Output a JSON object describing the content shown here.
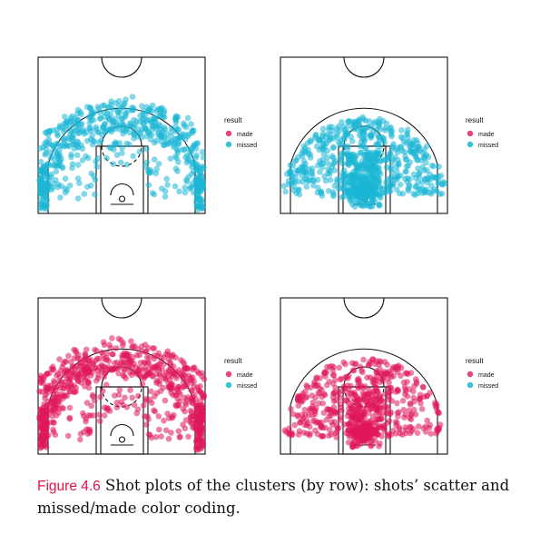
{
  "legend": {
    "title": "result",
    "items": [
      {
        "label": "made",
        "color": "#e8467a"
      },
      {
        "label": "missed",
        "color": "#35c3d6"
      }
    ]
  },
  "colors": {
    "made_point": "#e0175a",
    "missed_point": "#1bb6d6"
  },
  "caption": {
    "figure_label": "Figure 4.6",
    "text": "Shot plots of the clusters (by row): shots’ scatter and missed/made color coding."
  },
  "chart_data": [
    {
      "type": "scatter",
      "panel": "row1-left",
      "shot_result": "missed",
      "distribution": "mid-range arc and corners"
    },
    {
      "type": "scatter",
      "panel": "row1-right",
      "shot_result": "missed",
      "distribution": "spread inside three-point line and paint"
    },
    {
      "type": "scatter",
      "panel": "row2-left",
      "shot_result": "made",
      "distribution": "mid-range arc and corners"
    },
    {
      "type": "scatter",
      "panel": "row2-right",
      "shot_result": "made",
      "distribution": "spread inside three-point line and paint"
    }
  ]
}
